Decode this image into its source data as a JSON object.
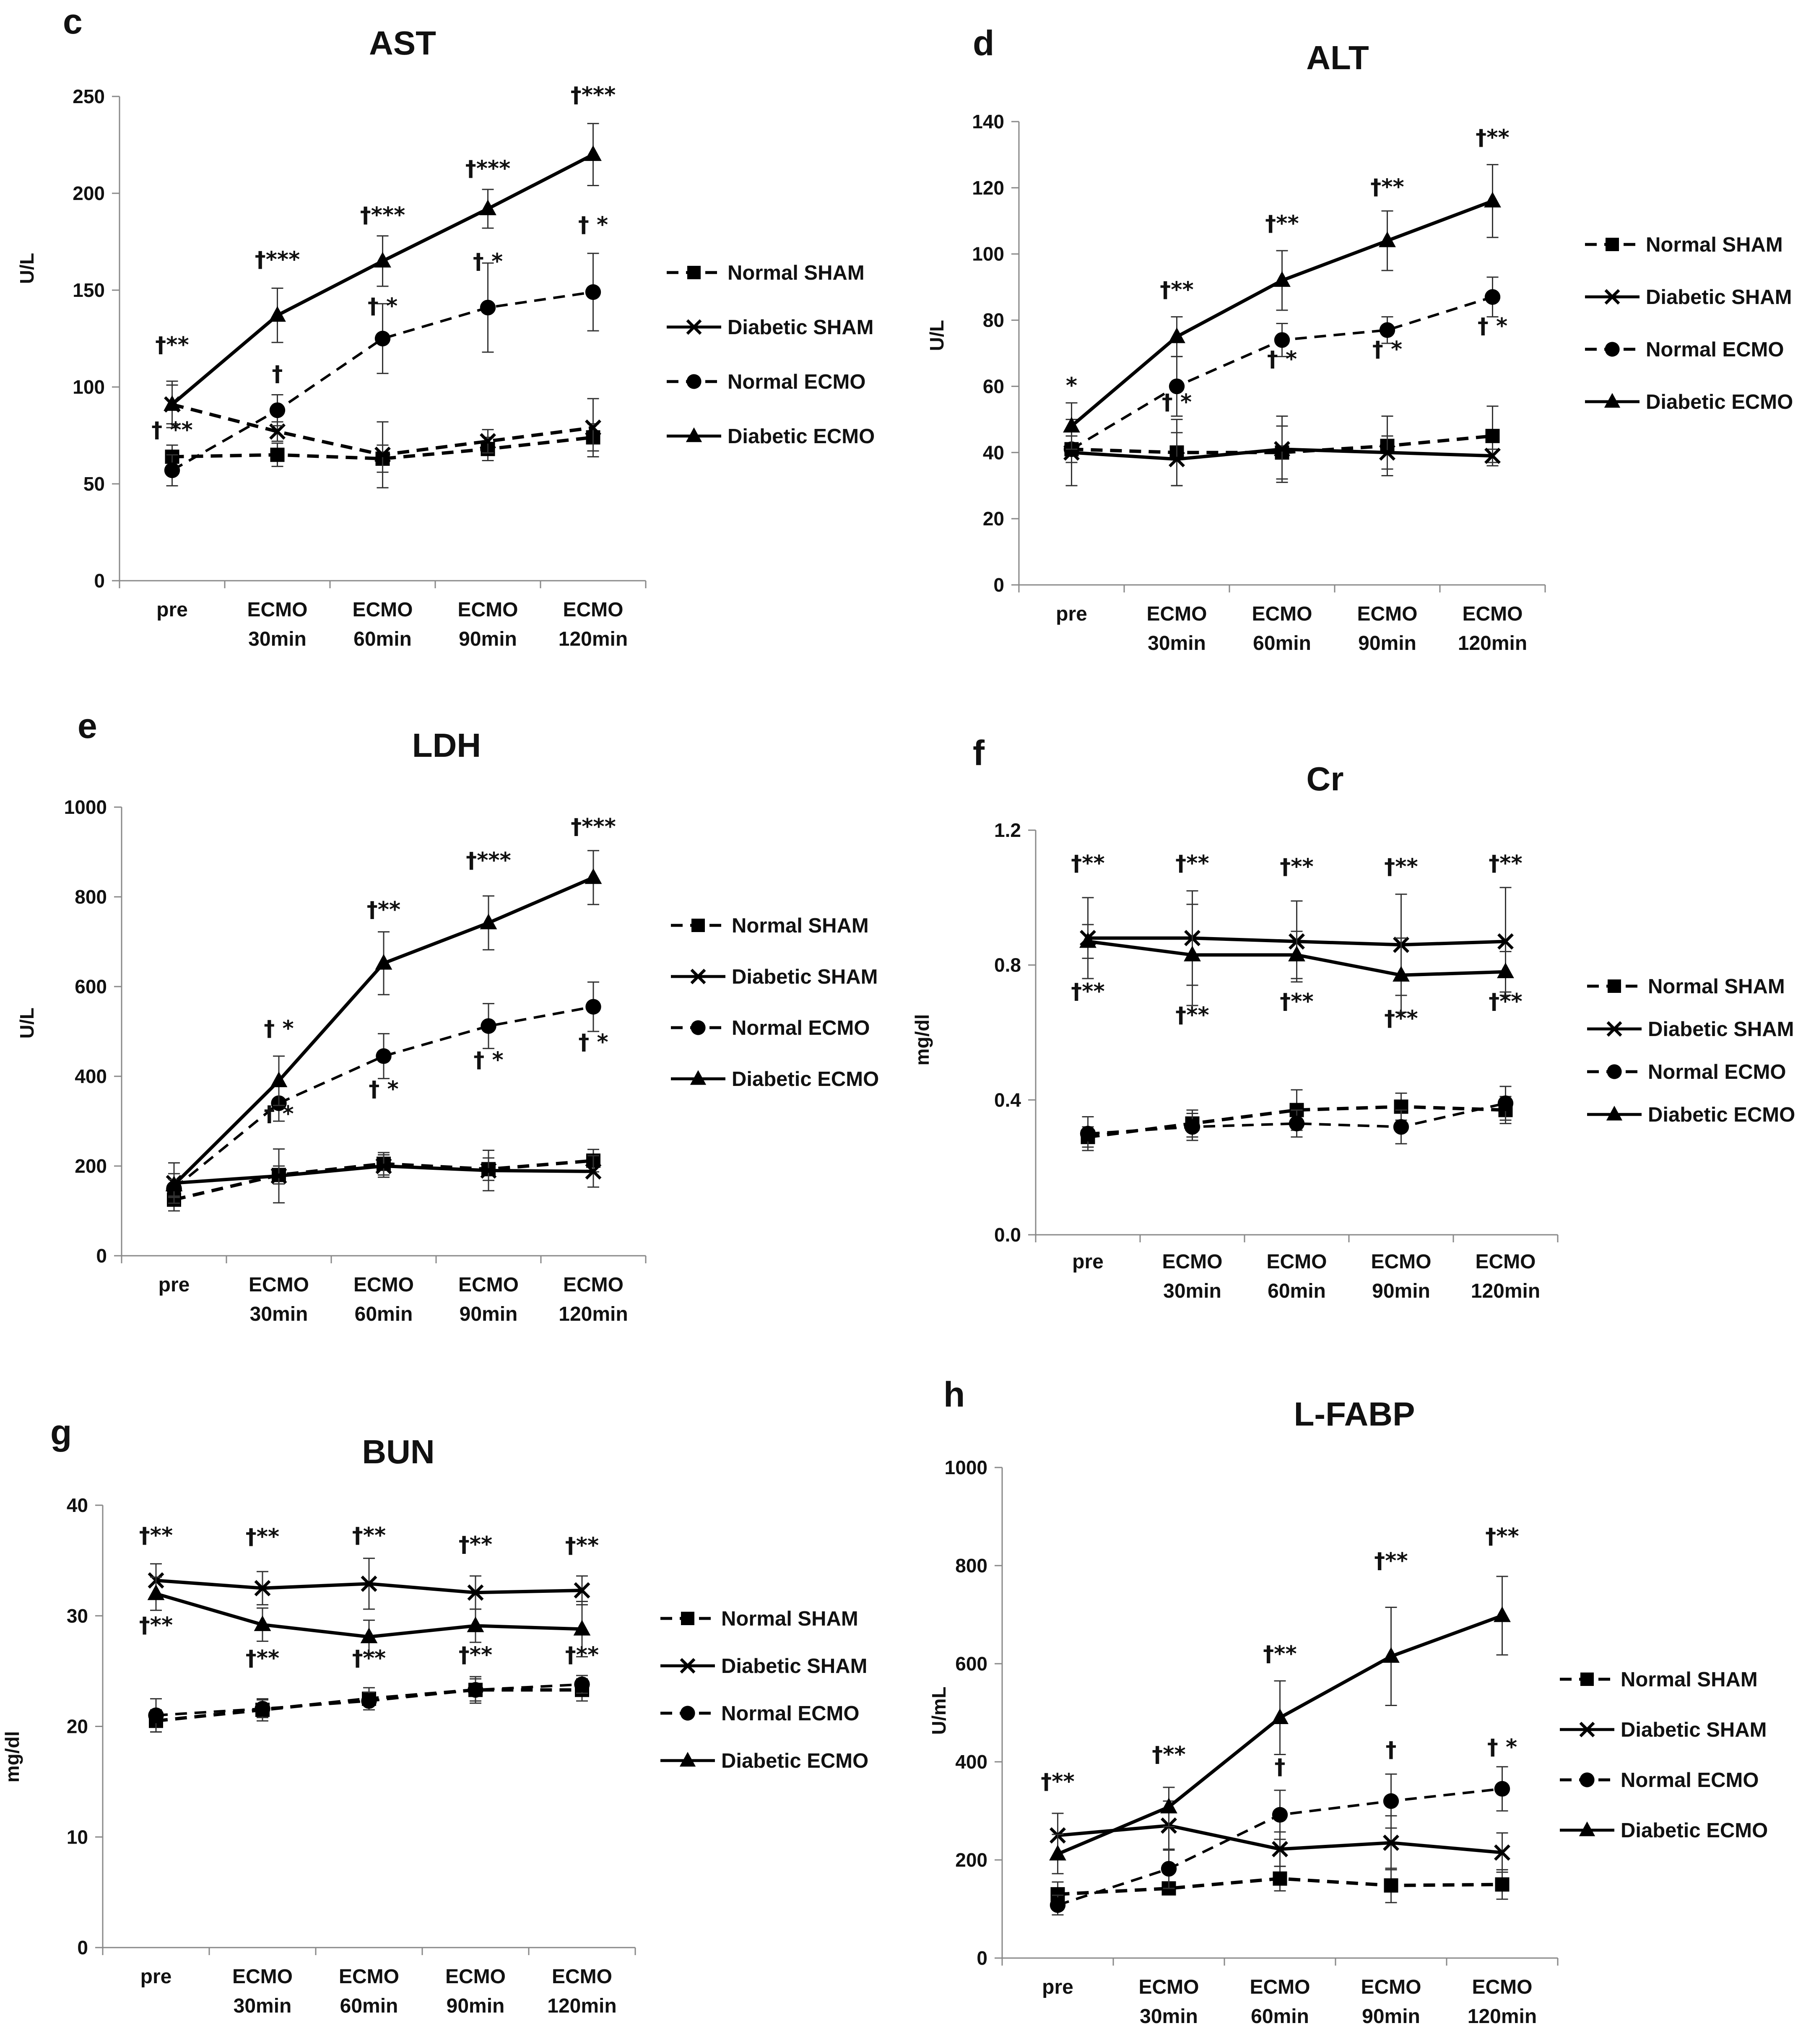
{
  "chart_data": [
    {
      "type": "line",
      "panel": "c",
      "title": "AST",
      "ylabel": "U/L",
      "ylim": [
        0,
        250
      ],
      "yticks": [
        "0",
        "50",
        "100",
        "150",
        "200",
        "250"
      ],
      "categories": [
        [
          "pre"
        ],
        [
          "ECMO",
          "30min"
        ],
        [
          "ECMO",
          "60min"
        ],
        [
          "ECMO",
          "90min"
        ],
        [
          "ECMO",
          "120min"
        ]
      ],
      "series": [
        {
          "name": "Normal SHAM",
          "values": [
            64,
            65,
            63,
            68,
            74
          ],
          "error": [
            6,
            6,
            7,
            6,
            7
          ]
        },
        {
          "name": "Diabetic SHAM",
          "values": [
            91,
            77,
            65,
            72,
            79
          ],
          "error": [
            12,
            5,
            17,
            6,
            15
          ]
        },
        {
          "name": "Normal ECMO",
          "values": [
            57,
            88,
            125,
            141,
            149
          ],
          "error": [
            8,
            8,
            18,
            23,
            20
          ]
        },
        {
          "name": "Diabetic ECMO",
          "values": [
            91,
            137,
            165,
            192,
            220
          ],
          "error": [
            10,
            14,
            13,
            10,
            16
          ]
        }
      ],
      "annotations": [
        {
          "text": "†**",
          "x": 0,
          "y": 118
        },
        {
          "text": "†  **",
          "x": 0,
          "y": 74
        },
        {
          "text": "†***",
          "x": 1,
          "y": 162
        },
        {
          "text": "†",
          "x": 1,
          "y": 103
        },
        {
          "text": "†***",
          "x": 2,
          "y": 185
        },
        {
          "text": "† *",
          "x": 2,
          "y": 138
        },
        {
          "text": "†***",
          "x": 3,
          "y": 209
        },
        {
          "text": "† *",
          "x": 3,
          "y": 161
        },
        {
          "text": "†***",
          "x": 4,
          "y": 247
        },
        {
          "text": "† *",
          "x": 4,
          "y": 180
        }
      ]
    },
    {
      "type": "line",
      "panel": "d",
      "title": "ALT",
      "ylabel": "U/L",
      "ylim": [
        0,
        140
      ],
      "yticks": [
        "0",
        "20",
        "40",
        "60",
        "80",
        "100",
        "120",
        "140"
      ],
      "categories": [
        [
          "pre"
        ],
        [
          "ECMO",
          "30min"
        ],
        [
          "ECMO",
          "60min"
        ],
        [
          "ECMO",
          "90min"
        ],
        [
          "ECMO",
          "120min"
        ]
      ],
      "series": [
        {
          "name": "Normal SHAM",
          "values": [
            41,
            40,
            40,
            42,
            45
          ],
          "error": [
            4,
            10,
            8,
            9,
            9
          ]
        },
        {
          "name": "Diabetic SHAM",
          "values": [
            40,
            38,
            41,
            40,
            39
          ],
          "error": [
            10,
            8,
            10,
            5,
            2
          ]
        },
        {
          "name": "Normal ECMO",
          "values": [
            41,
            60,
            74,
            77,
            87
          ],
          "error": [
            4,
            9,
            5,
            4,
            6
          ]
        },
        {
          "name": "Diabetic ECMO",
          "values": [
            48,
            75,
            92,
            104,
            116
          ],
          "error": [
            7,
            6,
            9,
            9,
            11
          ]
        }
      ],
      "annotations": [
        {
          "text": "*",
          "x": 0,
          "y": 58
        },
        {
          "text": "†**",
          "x": 1,
          "y": 87
        },
        {
          "text": "† *",
          "x": 1,
          "y": 53
        },
        {
          "text": "†**",
          "x": 2,
          "y": 107
        },
        {
          "text": "† *",
          "x": 2,
          "y": 66
        },
        {
          "text": "†**",
          "x": 3,
          "y": 118
        },
        {
          "text": "† *",
          "x": 3,
          "y": 69
        },
        {
          "text": "†**",
          "x": 4,
          "y": 133
        },
        {
          "text": "† *",
          "x": 4,
          "y": 76
        }
      ]
    },
    {
      "type": "line",
      "panel": "e",
      "title": "LDH",
      "ylabel": "U/L",
      "ylim": [
        0,
        1000
      ],
      "yticks": [
        "0",
        "200",
        "400",
        "600",
        "800",
        "1000"
      ],
      "categories": [
        [
          "pre"
        ],
        [
          "ECMO",
          "30min"
        ],
        [
          "ECMO",
          "60min"
        ],
        [
          "ECMO",
          "90min"
        ],
        [
          "ECMO",
          "120min"
        ]
      ],
      "series": [
        {
          "name": "Normal SHAM",
          "values": [
            125,
            180,
            205,
            193,
            212
          ],
          "error": [
            25,
            20,
            25,
            25,
            25
          ]
        },
        {
          "name": "Diabetic SHAM",
          "values": [
            162,
            178,
            200,
            190,
            188
          ],
          "error": [
            45,
            60,
            25,
            45,
            35
          ]
        },
        {
          "name": "Normal ECMO",
          "values": [
            150,
            340,
            445,
            512,
            555
          ],
          "error": [
            20,
            40,
            50,
            50,
            55
          ]
        },
        {
          "name": "Diabetic ECMO",
          "values": [
            158,
            390,
            652,
            742,
            843
          ],
          "error": [
            25,
            55,
            70,
            60,
            60
          ]
        }
      ],
      "annotations": [
        {
          "text": "† *",
          "x": 1,
          "y": 490
        },
        {
          "text": "† *",
          "x": 1,
          "y": 300
        },
        {
          "text": "†**",
          "x": 2,
          "y": 755
        },
        {
          "text": "† *",
          "x": 2,
          "y": 355
        },
        {
          "text": "†***",
          "x": 3,
          "y": 865
        },
        {
          "text": "† *",
          "x": 3,
          "y": 420
        },
        {
          "text": "†***",
          "x": 4,
          "y": 940
        },
        {
          "text": "† *",
          "x": 4,
          "y": 460
        }
      ]
    },
    {
      "type": "line",
      "panel": "f",
      "title": "Cr",
      "ylabel": "mg/dl",
      "ylim": [
        0,
        1.2
      ],
      "yticks": [
        "0.0",
        "0.4",
        "0.8",
        "1.2"
      ],
      "categories": [
        [
          "pre"
        ],
        [
          "ECMO",
          "30min"
        ],
        [
          "ECMO",
          "60min"
        ],
        [
          "ECMO",
          "90min"
        ],
        [
          "ECMO",
          "120min"
        ]
      ],
      "series": [
        {
          "name": "Normal SHAM",
          "values": [
            0.29,
            0.33,
            0.37,
            0.38,
            0.37
          ],
          "error": [
            0.03,
            0.04,
            0.06,
            0.04,
            0.04
          ]
        },
        {
          "name": "Diabetic SHAM",
          "values": [
            0.88,
            0.88,
            0.87,
            0.86,
            0.87
          ],
          "error": [
            0.12,
            0.14,
            0.12,
            0.15,
            0.16
          ]
        },
        {
          "name": "Normal ECMO",
          "values": [
            0.3,
            0.32,
            0.33,
            0.32,
            0.39
          ],
          "error": [
            0.05,
            0.04,
            0.04,
            0.05,
            0.05
          ]
        },
        {
          "name": "Diabetic ECMO",
          "values": [
            0.87,
            0.83,
            0.83,
            0.77,
            0.78
          ],
          "error": [
            0.05,
            0.15,
            0.07,
            0.11,
            0.06
          ]
        }
      ],
      "annotations": [
        {
          "text": "†**",
          "x": 0,
          "y": 1.08
        },
        {
          "text": "†**",
          "x": 0,
          "y": 0.7
        },
        {
          "text": "†**",
          "x": 1,
          "y": 1.08
        },
        {
          "text": "†**",
          "x": 1,
          "y": 0.63
        },
        {
          "text": "†**",
          "x": 2,
          "y": 1.07
        },
        {
          "text": "†**",
          "x": 2,
          "y": 0.67
        },
        {
          "text": "†**",
          "x": 3,
          "y": 1.07
        },
        {
          "text": "†**",
          "x": 3,
          "y": 0.62
        },
        {
          "text": "†**",
          "x": 4,
          "y": 1.08
        },
        {
          "text": "†**",
          "x": 4,
          "y": 0.67
        }
      ]
    },
    {
      "type": "line",
      "panel": "g",
      "title": "BUN",
      "ylabel": "mg/dl",
      "ylim": [
        0,
        40
      ],
      "yticks": [
        "0",
        "10",
        "20",
        "30",
        "40"
      ],
      "categories": [
        [
          "pre"
        ],
        [
          "ECMO",
          "30min"
        ],
        [
          "ECMO",
          "60min"
        ],
        [
          "ECMO",
          "90min"
        ],
        [
          "ECMO",
          "120min"
        ]
      ],
      "series": [
        {
          "name": "Normal SHAM",
          "values": [
            20.5,
            21.5,
            22.5,
            23.3,
            23.3
          ],
          "error": [
            1.0,
            1.0,
            1.0,
            1.0,
            1.0
          ]
        },
        {
          "name": "Diabetic SHAM",
          "values": [
            33.2,
            32.5,
            32.9,
            32.1,
            32.3
          ],
          "error": [
            1.5,
            1.5,
            2.3,
            1.5,
            1.3
          ]
        },
        {
          "name": "Normal ECMO",
          "values": [
            21.0,
            21.6,
            22.3,
            23.3,
            23.8
          ],
          "error": [
            1.5,
            0.8,
            0.8,
            1.2,
            0.8
          ]
        },
        {
          "name": "Diabetic ECMO",
          "values": [
            32.0,
            29.2,
            28.1,
            29.1,
            28.8
          ],
          "error": [
            1.5,
            1.5,
            1.5,
            1.5,
            2.5
          ]
        }
      ],
      "annotations": [
        {
          "text": "†**",
          "x": 0,
          "y": 36.6
        },
        {
          "text": "†**",
          "x": 0,
          "y": 28.5
        },
        {
          "text": "†**",
          "x": 1,
          "y": 36.5
        },
        {
          "text": "†**",
          "x": 1,
          "y": 25.5
        },
        {
          "text": "†**",
          "x": 2,
          "y": 36.6
        },
        {
          "text": "†**",
          "x": 2,
          "y": 25.5
        },
        {
          "text": "†**",
          "x": 3,
          "y": 35.8
        },
        {
          "text": "†**",
          "x": 3,
          "y": 25.8
        },
        {
          "text": "†**",
          "x": 4,
          "y": 35.7
        },
        {
          "text": "†**",
          "x": 4,
          "y": 25.8
        }
      ]
    },
    {
      "type": "line",
      "panel": "h",
      "title": "L-FABP",
      "ylabel": "U/mL",
      "ylim": [
        0,
        1000
      ],
      "yticks": [
        "0",
        "200",
        "400",
        "600",
        "800",
        "1000"
      ],
      "categories": [
        [
          "pre"
        ],
        [
          "ECMO",
          "30min"
        ],
        [
          "ECMO",
          "60min"
        ],
        [
          "ECMO",
          "90min"
        ],
        [
          "ECMO",
          "120min"
        ]
      ],
      "series": [
        {
          "name": "Normal SHAM",
          "values": [
            130,
            142,
            162,
            148,
            150
          ],
          "error": [
            25,
            10,
            25,
            35,
            30
          ]
        },
        {
          "name": "Diabetic SHAM",
          "values": [
            250,
            270,
            222,
            235,
            215
          ],
          "error": [
            45,
            50,
            35,
            55,
            40
          ]
        },
        {
          "name": "Normal ECMO",
          "values": [
            108,
            182,
            292,
            320,
            345
          ],
          "error": [
            20,
            40,
            50,
            55,
            45
          ]
        },
        {
          "name": "Diabetic ECMO",
          "values": [
            212,
            308,
            490,
            615,
            698
          ],
          "error": [
            40,
            40,
            75,
            100,
            80
          ]
        }
      ],
      "annotations": [
        {
          "text": "†**",
          "x": 0,
          "y": 345
        },
        {
          "text": "†**",
          "x": 1,
          "y": 400
        },
        {
          "text": "†**",
          "x": 2,
          "y": 605
        },
        {
          "text": "†",
          "x": 2,
          "y": 375
        },
        {
          "text": "†**",
          "x": 3,
          "y": 795
        },
        {
          "text": "†",
          "x": 3,
          "y": 410
        },
        {
          "text": "†**",
          "x": 4,
          "y": 845
        },
        {
          "text": "† *",
          "x": 4,
          "y": 415
        }
      ]
    }
  ]
}
